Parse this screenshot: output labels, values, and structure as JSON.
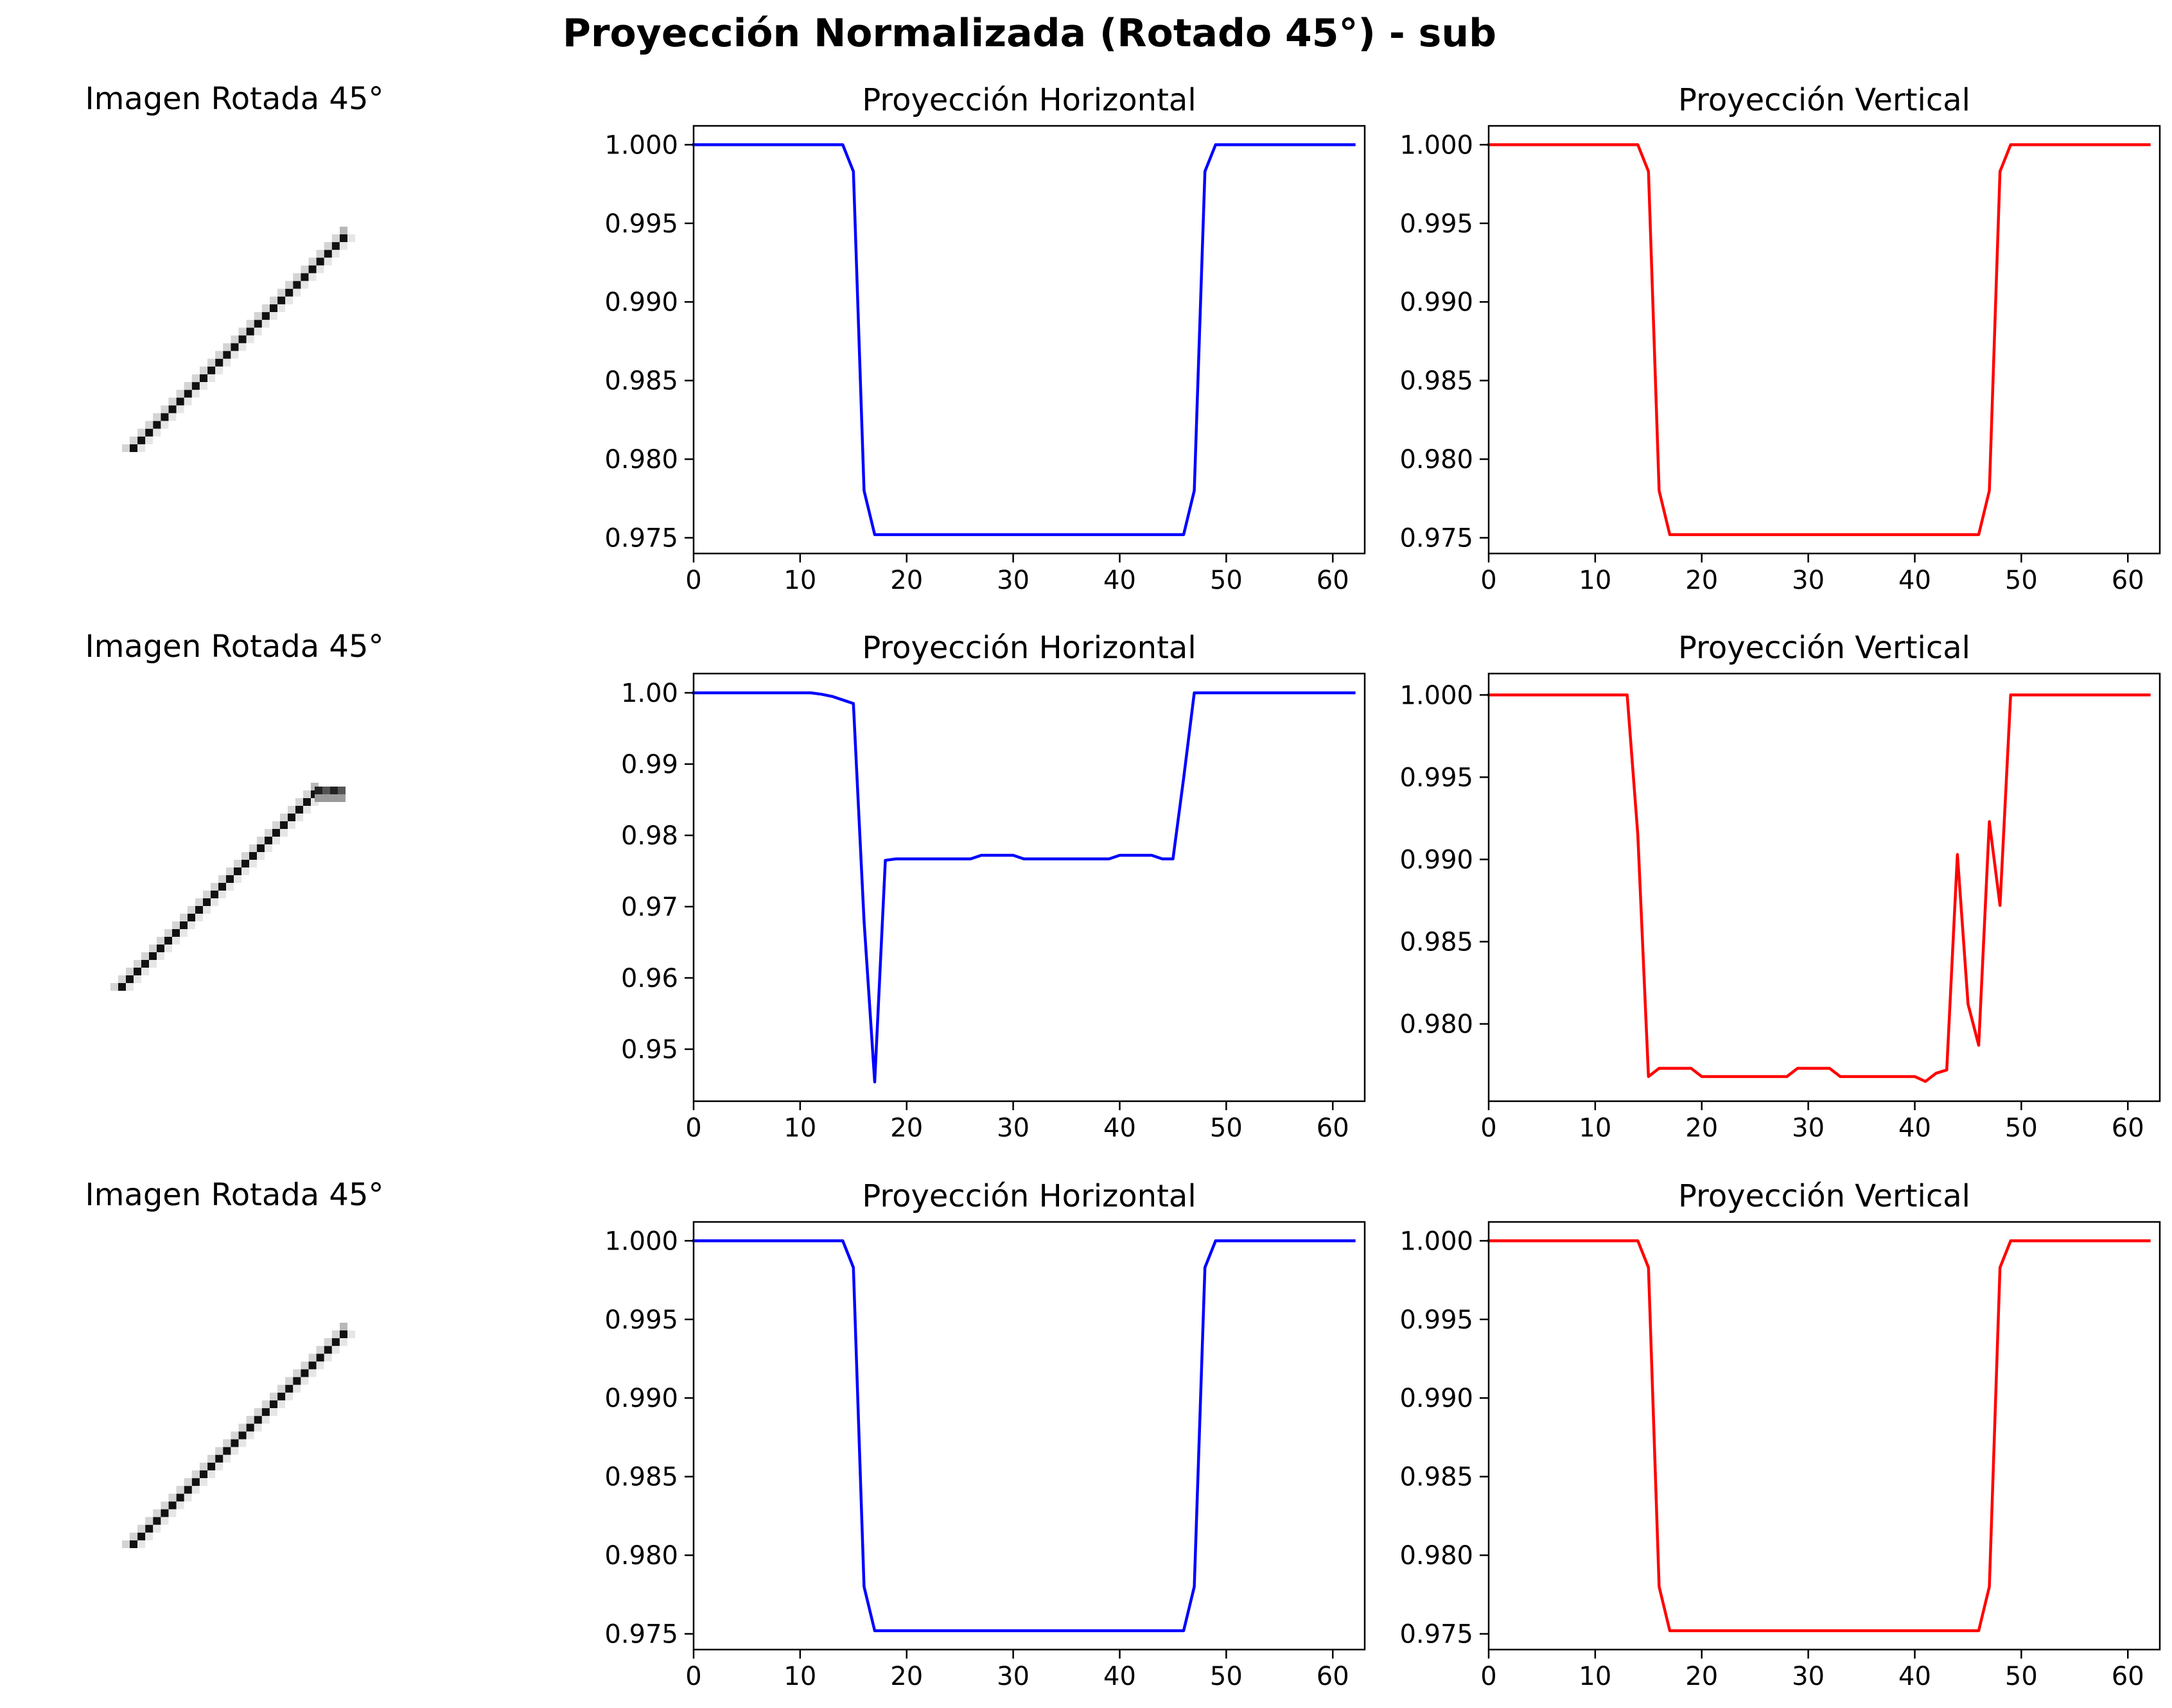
{
  "figure": {
    "suptitle": "Proyección Normalizada (Rotado 45°) - sub"
  },
  "image_panels": [
    {
      "title": "Imagen Rotada 45°",
      "variant": "straight"
    },
    {
      "title": "Imagen Rotada 45°",
      "variant": "hooked"
    },
    {
      "title": "Imagen Rotada 45°",
      "variant": "straight"
    }
  ],
  "chart_data": [
    {
      "type": "line",
      "row": 1,
      "title": "Proyección Horizontal",
      "color": "#0000ff",
      "xlabel": "",
      "ylabel": "",
      "xlim": [
        0,
        63
      ],
      "ylim": [
        0.974,
        1.0012
      ],
      "xticks": [
        0,
        10,
        20,
        30,
        40,
        50,
        60
      ],
      "xtick_labels": [
        "0",
        "10",
        "20",
        "30",
        "40",
        "50",
        "60"
      ],
      "yticks": [
        0.975,
        0.98,
        0.985,
        0.99,
        0.995,
        1.0
      ],
      "ytick_labels": [
        "0.975",
        "0.980",
        "0.985",
        "0.990",
        "0.995",
        "1.000"
      ],
      "series": [
        {
          "x": [
            0,
            14,
            15,
            16,
            17,
            46,
            47,
            48,
            49,
            62
          ],
          "y": [
            1.0,
            1.0,
            0.9983,
            0.978,
            0.9752,
            0.9752,
            0.978,
            0.9983,
            1.0,
            1.0
          ]
        }
      ]
    },
    {
      "type": "line",
      "row": 1,
      "title": "Proyección Vertical",
      "color": "#ff0000",
      "xlabel": "",
      "ylabel": "",
      "xlim": [
        0,
        63
      ],
      "ylim": [
        0.974,
        1.0012
      ],
      "xticks": [
        0,
        10,
        20,
        30,
        40,
        50,
        60
      ],
      "xtick_labels": [
        "0",
        "10",
        "20",
        "30",
        "40",
        "50",
        "60"
      ],
      "yticks": [
        0.975,
        0.98,
        0.985,
        0.99,
        0.995,
        1.0
      ],
      "ytick_labels": [
        "0.975",
        "0.980",
        "0.985",
        "0.990",
        "0.995",
        "1.000"
      ],
      "series": [
        {
          "x": [
            0,
            14,
            15,
            16,
            17,
            46,
            47,
            48,
            49,
            62
          ],
          "y": [
            1.0,
            1.0,
            0.9983,
            0.978,
            0.9752,
            0.9752,
            0.978,
            0.9983,
            1.0,
            1.0
          ]
        }
      ]
    },
    {
      "type": "line",
      "row": 2,
      "title": "Proyección Horizontal",
      "color": "#0000ff",
      "xlabel": "",
      "ylabel": "",
      "xlim": [
        0,
        63
      ],
      "ylim": [
        0.9427,
        1.0027
      ],
      "xticks": [
        0,
        10,
        20,
        30,
        40,
        50,
        60
      ],
      "xtick_labels": [
        "0",
        "10",
        "20",
        "30",
        "40",
        "50",
        "60"
      ],
      "yticks": [
        0.95,
        0.96,
        0.97,
        0.98,
        0.99,
        1.0
      ],
      "ytick_labels": [
        "0.95",
        "0.96",
        "0.97",
        "0.98",
        "0.99",
        "1.00"
      ],
      "series": [
        {
          "x": [
            0,
            11,
            12,
            13,
            14,
            15,
            16,
            17,
            18,
            19,
            20,
            21,
            22,
            23,
            24,
            25,
            26,
            27,
            28,
            29,
            30,
            31,
            32,
            33,
            34,
            35,
            36,
            37,
            38,
            39,
            40,
            41,
            42,
            43,
            44,
            45,
            46,
            47,
            62
          ],
          "y": [
            1.0,
            1.0,
            0.9998,
            0.9995,
            0.999,
            0.9985,
            0.968,
            0.9454,
            0.9765,
            0.9767,
            0.9767,
            0.9767,
            0.9767,
            0.9767,
            0.9767,
            0.9767,
            0.9767,
            0.9772,
            0.9772,
            0.9772,
            0.9772,
            0.9767,
            0.9767,
            0.9767,
            0.9767,
            0.9767,
            0.9767,
            0.9767,
            0.9767,
            0.9767,
            0.9772,
            0.9772,
            0.9772,
            0.9772,
            0.9767,
            0.9767,
            0.988,
            1.0,
            1.0
          ]
        }
      ]
    },
    {
      "type": "line",
      "row": 2,
      "title": "Proyección Vertical",
      "color": "#ff0000",
      "xlabel": "",
      "ylabel": "",
      "xlim": [
        0,
        63
      ],
      "ylim": [
        0.9753,
        1.0013
      ],
      "xticks": [
        0,
        10,
        20,
        30,
        40,
        50,
        60
      ],
      "xtick_labels": [
        "0",
        "10",
        "20",
        "30",
        "40",
        "50",
        "60"
      ],
      "yticks": [
        0.98,
        0.985,
        0.99,
        0.995,
        1.0
      ],
      "ytick_labels": [
        "0.980",
        "0.985",
        "0.990",
        "0.995",
        "1.000"
      ],
      "series": [
        {
          "x": [
            0,
            13,
            14,
            15,
            16,
            17,
            18,
            19,
            20,
            21,
            22,
            23,
            24,
            25,
            26,
            27,
            28,
            29,
            30,
            31,
            32,
            33,
            34,
            35,
            36,
            37,
            38,
            39,
            40,
            41,
            42,
            43,
            44,
            45,
            46,
            47,
            48,
            49,
            62
          ],
          "y": [
            1.0,
            1.0,
            0.9915,
            0.9768,
            0.9773,
            0.9773,
            0.9773,
            0.9773,
            0.9768,
            0.9768,
            0.9768,
            0.9768,
            0.9768,
            0.9768,
            0.9768,
            0.9768,
            0.9768,
            0.9773,
            0.9773,
            0.9773,
            0.9773,
            0.9768,
            0.9768,
            0.9768,
            0.9768,
            0.9768,
            0.9768,
            0.9768,
            0.9768,
            0.9765,
            0.977,
            0.9772,
            0.9903,
            0.9812,
            0.9787,
            0.9923,
            0.9872,
            1.0,
            1.0
          ]
        }
      ]
    },
    {
      "type": "line",
      "row": 3,
      "title": "Proyección Horizontal",
      "color": "#0000ff",
      "xlabel": "",
      "ylabel": "",
      "xlim": [
        0,
        63
      ],
      "ylim": [
        0.974,
        1.0012
      ],
      "xticks": [
        0,
        10,
        20,
        30,
        40,
        50,
        60
      ],
      "xtick_labels": [
        "0",
        "10",
        "20",
        "30",
        "40",
        "50",
        "60"
      ],
      "yticks": [
        0.975,
        0.98,
        0.985,
        0.99,
        0.995,
        1.0
      ],
      "ytick_labels": [
        "0.975",
        "0.980",
        "0.985",
        "0.990",
        "0.995",
        "1.000"
      ],
      "series": [
        {
          "x": [
            0,
            14,
            15,
            16,
            17,
            46,
            47,
            48,
            49,
            62
          ],
          "y": [
            1.0,
            1.0,
            0.9983,
            0.978,
            0.9752,
            0.9752,
            0.978,
            0.9983,
            1.0,
            1.0
          ]
        }
      ]
    },
    {
      "type": "line",
      "row": 3,
      "title": "Proyección Vertical",
      "color": "#ff0000",
      "xlabel": "",
      "ylabel": "",
      "xlim": [
        0,
        63
      ],
      "ylim": [
        0.974,
        1.0012
      ],
      "xticks": [
        0,
        10,
        20,
        30,
        40,
        50,
        60
      ],
      "xtick_labels": [
        "0",
        "10",
        "20",
        "30",
        "40",
        "50",
        "60"
      ],
      "yticks": [
        0.975,
        0.98,
        0.985,
        0.99,
        0.995,
        1.0
      ],
      "ytick_labels": [
        "0.975",
        "0.980",
        "0.985",
        "0.990",
        "0.995",
        "1.000"
      ],
      "series": [
        {
          "x": [
            0,
            14,
            15,
            16,
            17,
            46,
            47,
            48,
            49,
            62
          ],
          "y": [
            1.0,
            1.0,
            0.9983,
            0.978,
            0.9752,
            0.9752,
            0.978,
            0.9983,
            1.0,
            1.0
          ]
        }
      ]
    }
  ]
}
